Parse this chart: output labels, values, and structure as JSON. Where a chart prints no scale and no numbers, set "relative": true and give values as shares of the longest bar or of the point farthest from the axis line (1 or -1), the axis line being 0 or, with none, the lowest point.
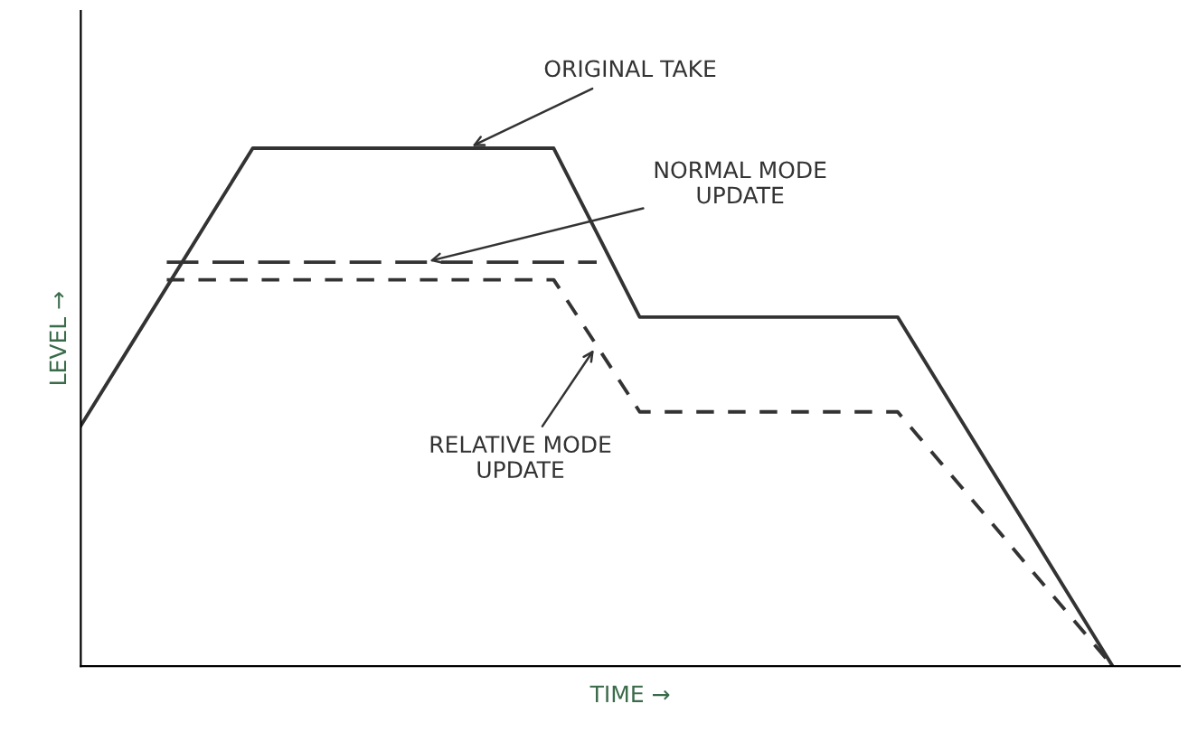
{
  "chart_data": {
    "type": "line",
    "relative": true,
    "xlabel": "TIME →",
    "ylabel": "LEVEL →",
    "categories": [
      null,
      null,
      null,
      null,
      null,
      null,
      null,
      null,
      null,
      null,
      null,
      null,
      null,
      null,
      null,
      null,
      null,
      null,
      null,
      null,
      null,
      null,
      null,
      null,
      null
    ],
    "series": [
      {
        "name": "ORIGINAL TAKE",
        "color": "#333333",
        "line_style": "solid",
        "values": [
          0.464,
          0.598,
          0.732,
          0.866,
          1,
          1,
          1,
          1,
          1,
          1,
          1,
          1,
          0.837,
          0.674,
          0.674,
          0.674,
          0.674,
          0.674,
          0.674,
          0.674,
          0.539,
          0.404,
          0.27,
          0.135,
          0
        ]
      },
      {
        "name": "NORMAL MODE\nUPDATE",
        "color": "#333333",
        "line_style": "dashed",
        "values": [
          null,
          null,
          0.78,
          0.78,
          0.78,
          0.78,
          0.78,
          0.78,
          0.78,
          0.78,
          0.78,
          0.78,
          0.78,
          null,
          null,
          null,
          null,
          null,
          null,
          null,
          null,
          null,
          null,
          null,
          null
        ]
      },
      {
        "name": "RELATIVE MODE\nUPDATE",
        "color": "#333333",
        "line_style": "dotted",
        "values": [
          null,
          null,
          0.746,
          0.746,
          0.746,
          0.746,
          0.746,
          0.746,
          0.746,
          0.746,
          0.746,
          0.746,
          0.619,
          0.491,
          0.491,
          0.491,
          0.491,
          0.491,
          0.491,
          0.491,
          0.393,
          0.295,
          0.196,
          0.098,
          0
        ]
      }
    ]
  }
}
